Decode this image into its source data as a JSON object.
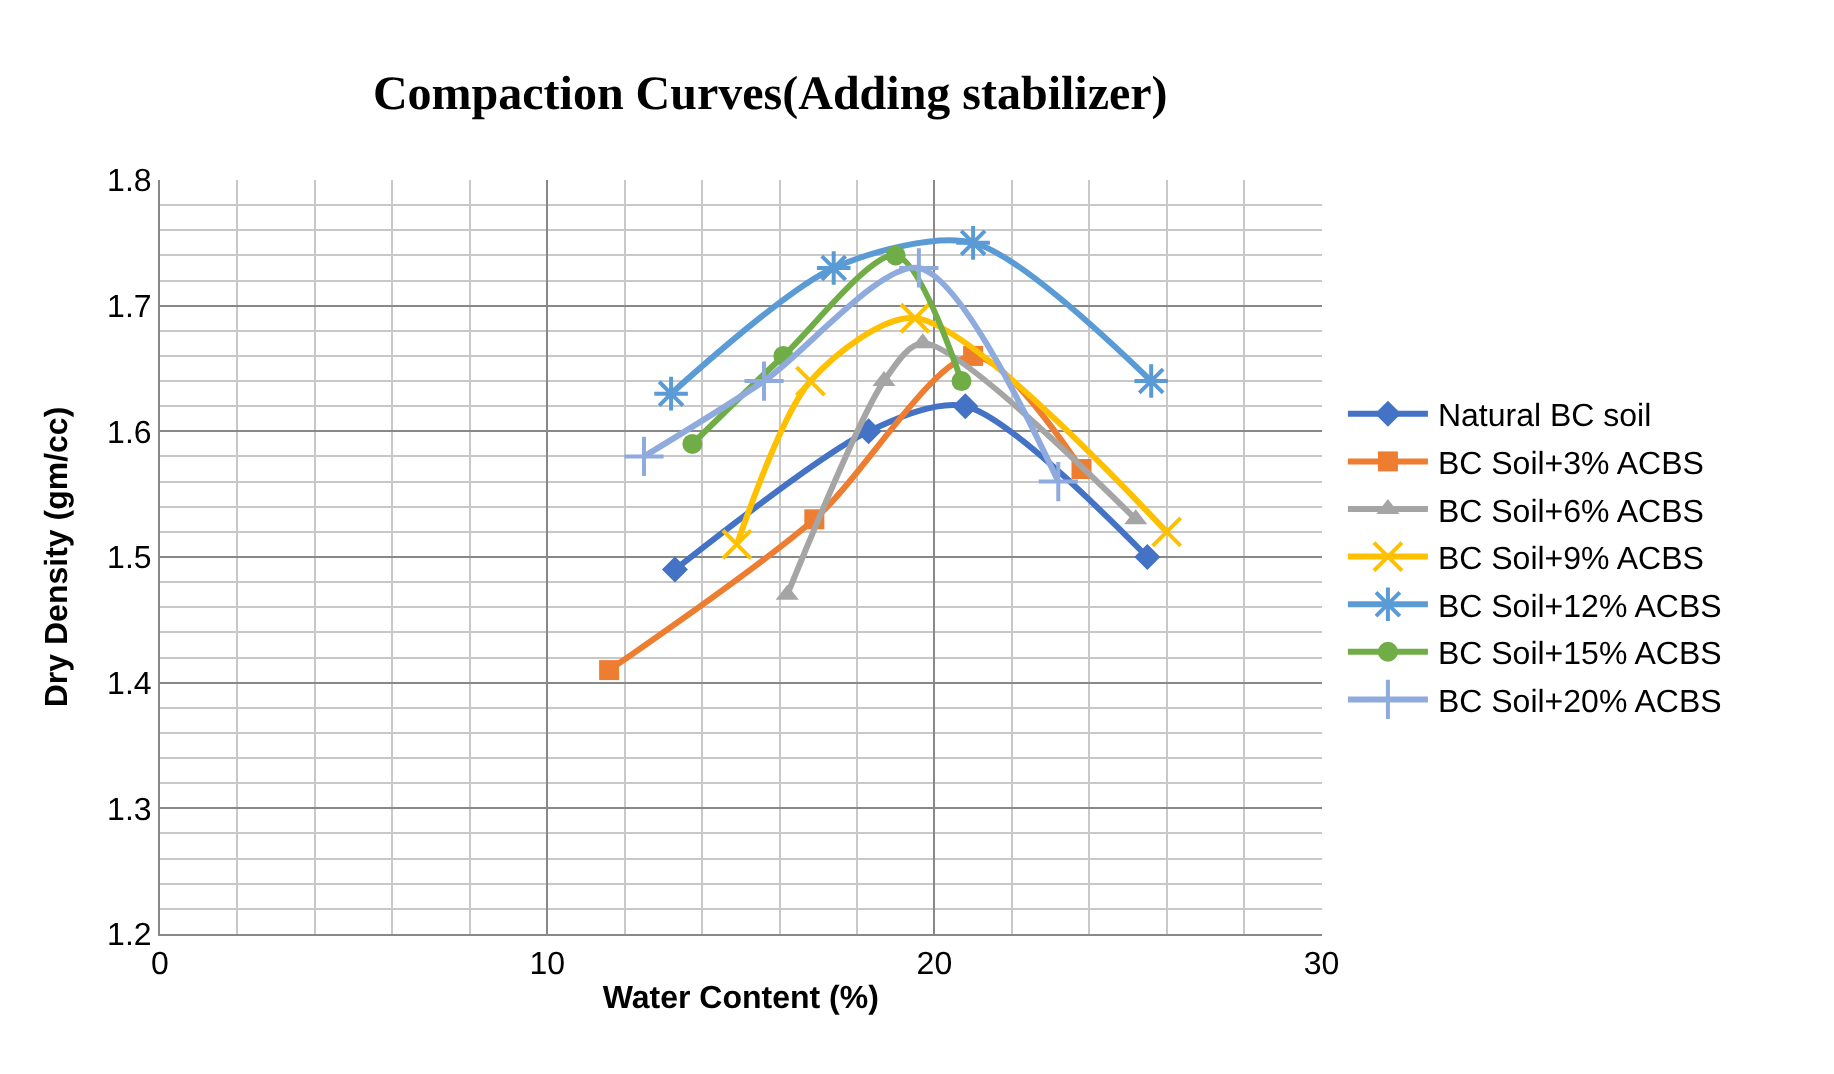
{
  "chart_data": {
    "type": "line",
    "title": "Compaction Curves(Adding stabilizer)",
    "xlabel": "Water Content (%)",
    "ylabel": "Dry Density (gm/cc)",
    "xlim": [
      0,
      30
    ],
    "xticks": [
      0,
      10,
      20,
      30
    ],
    "ylim": [
      1.2,
      1.8
    ],
    "yticks": [
      1.2,
      1.3,
      1.4,
      1.5,
      1.6,
      1.7,
      1.8
    ],
    "grid": true,
    "legend": "right",
    "series": [
      {
        "name": "Natural BC soil",
        "color": "#4472c4",
        "marker": "diamond",
        "x": [
          13.3,
          18.3,
          20.8,
          25.5
        ],
        "values": [
          1.49,
          1.6,
          1.62,
          1.5
        ]
      },
      {
        "name": "BC Soil+3% ACBS",
        "color": "#ed7d31",
        "marker": "square",
        "x": [
          11.6,
          16.9,
          21.0,
          23.8
        ],
        "values": [
          1.41,
          1.53,
          1.66,
          1.57
        ]
      },
      {
        "name": "BC Soil+6% ACBS",
        "color": "#a5a5a5",
        "marker": "triangle",
        "x": [
          16.2,
          18.7,
          19.7,
          25.2
        ],
        "values": [
          1.47,
          1.64,
          1.67,
          1.53
        ]
      },
      {
        "name": "BC Soil+9% ACBS",
        "color": "#ffc000",
        "marker": "cross",
        "x": [
          14.9,
          16.8,
          19.5,
          26.0
        ],
        "values": [
          1.51,
          1.64,
          1.69,
          1.52
        ]
      },
      {
        "name": "BC Soil+12% ACBS",
        "color": "#5b9bd5",
        "marker": "cross",
        "x": [
          13.2,
          17.4,
          21.0,
          25.6
        ],
        "values": [
          1.63,
          1.73,
          1.75,
          1.64
        ]
      },
      {
        "name": "BC Soil+15% ACBS",
        "color": "#70ad47",
        "marker": "circle",
        "x": [
          13.75,
          16.1,
          19.0,
          20.7
        ],
        "values": [
          1.59,
          1.66,
          1.74,
          1.64
        ]
      },
      {
        "name": "BC Soil+20% ACBS",
        "color": "#8faadc",
        "marker": "cross",
        "x": [
          12.5,
          15.6,
          19.6,
          23.2
        ],
        "values": [
          1.58,
          1.64,
          1.73,
          1.56
        ]
      }
    ]
  }
}
